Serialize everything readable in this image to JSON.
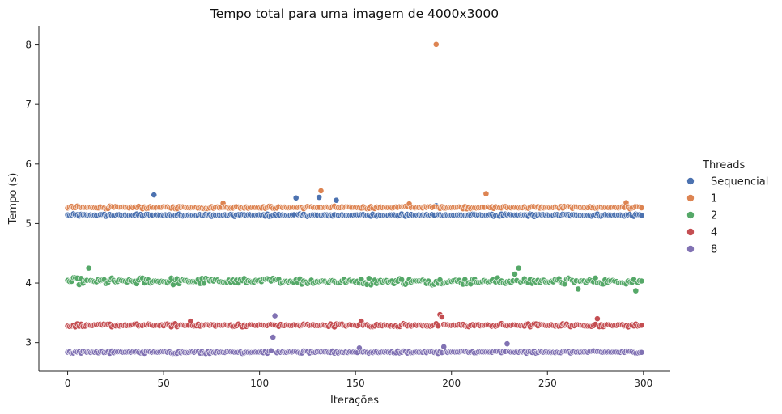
{
  "chart_data": {
    "type": "scatter",
    "title": "Tempo total para uma imagem de 4000x3000",
    "xlabel": "Iterações",
    "ylabel": "Tempo (s)",
    "xlim": [
      -15,
      314
    ],
    "ylim": [
      2.52,
      8.32
    ],
    "xticks": [
      0,
      50,
      100,
      150,
      200,
      250,
      300
    ],
    "yticks": [
      3,
      4,
      5,
      6,
      7,
      8
    ],
    "grid": false,
    "legend": {
      "title": "Threads",
      "placement": "right",
      "entries": [
        {
          "label": "Sequencial",
          "color": "#4c72b0"
        },
        {
          "label": "1",
          "color": "#dd8452"
        },
        {
          "label": "2",
          "color": "#55a868"
        },
        {
          "label": "4",
          "color": "#c44e52"
        },
        {
          "label": "8",
          "color": "#8172b3"
        }
      ]
    },
    "iterations": 300,
    "series": [
      {
        "name": "Sequencial",
        "color": "#4c72b0",
        "base": 5.14,
        "noise": 0.015,
        "outliers": [
          [
            45,
            5.48
          ],
          [
            119,
            5.43
          ],
          [
            131,
            5.44
          ],
          [
            140,
            5.39
          ],
          [
            192,
            5.3
          ]
        ]
      },
      {
        "name": "1",
        "color": "#dd8452",
        "base": 5.27,
        "noise": 0.015,
        "outliers": [
          [
            192,
            8.01
          ],
          [
            132,
            5.55
          ],
          [
            218,
            5.5
          ],
          [
            81,
            5.34
          ],
          [
            178,
            5.33
          ],
          [
            291,
            5.35
          ]
        ]
      },
      {
        "name": "2",
        "color": "#55a868",
        "base": 4.03,
        "noise": 0.04,
        "outliers": [
          [
            11,
            4.25
          ],
          [
            235,
            4.25
          ],
          [
            233,
            4.15
          ],
          [
            296,
            3.87
          ],
          [
            266,
            3.9
          ]
        ]
      },
      {
        "name": "4",
        "color": "#c44e52",
        "base": 3.29,
        "noise": 0.02,
        "outliers": [
          [
            194,
            3.47
          ],
          [
            195,
            3.43
          ],
          [
            276,
            3.4
          ],
          [
            64,
            3.36
          ],
          [
            153,
            3.36
          ]
        ]
      },
      {
        "name": "8",
        "color": "#8172b3",
        "base": 2.84,
        "noise": 0.015,
        "outliers": [
          [
            108,
            3.45
          ],
          [
            107,
            3.09
          ],
          [
            196,
            2.93
          ],
          [
            229,
            2.98
          ],
          [
            152,
            2.91
          ]
        ]
      }
    ]
  }
}
